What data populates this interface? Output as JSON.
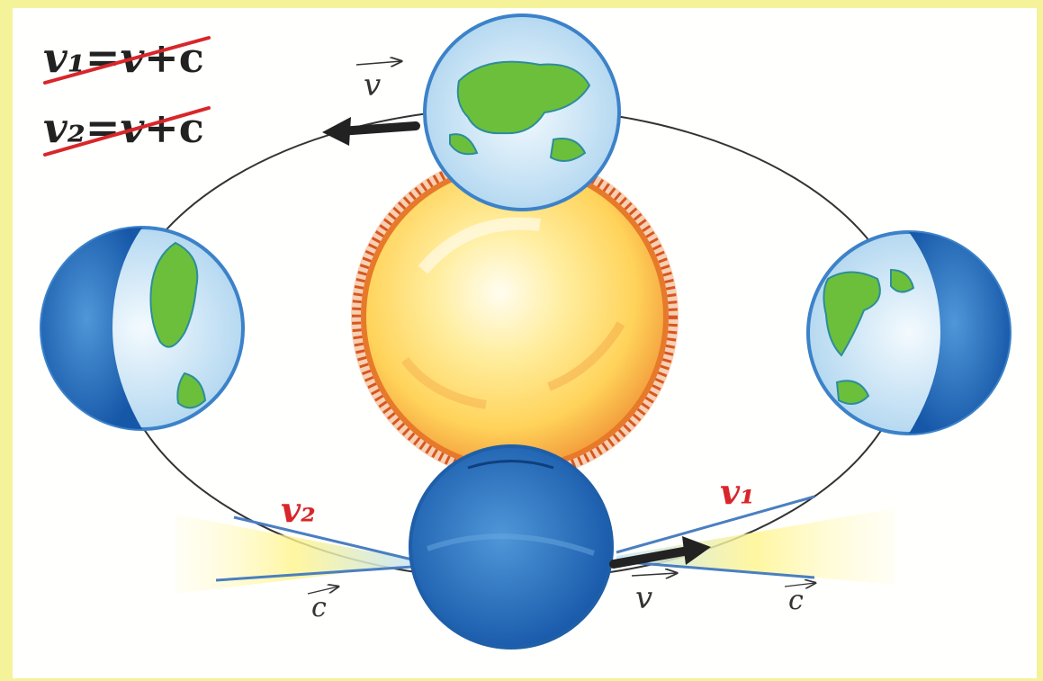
{
  "formulas": [
    {
      "lhs": "v₁",
      "equals": "=",
      "rhs_strike": "v",
      "plus": "+c"
    },
    {
      "lhs": "v₂",
      "equals": "=",
      "rhs_strike": "v",
      "plus": "+c"
    }
  ],
  "labels": {
    "velocity_top": "v",
    "velocity_bottom": "v",
    "speed_v1": "v₁",
    "speed_v2": "v₂",
    "light_left": "c",
    "light_right": "c"
  },
  "colors": {
    "background": "#f4f39a",
    "earth_dark": "#1f6fc4",
    "earth_light": "#cfe6f4",
    "land": "#6cbf3b",
    "sun_core": "#ffe27a",
    "sun_rim": "#e7792a",
    "highlight_red": "#d8262a"
  }
}
